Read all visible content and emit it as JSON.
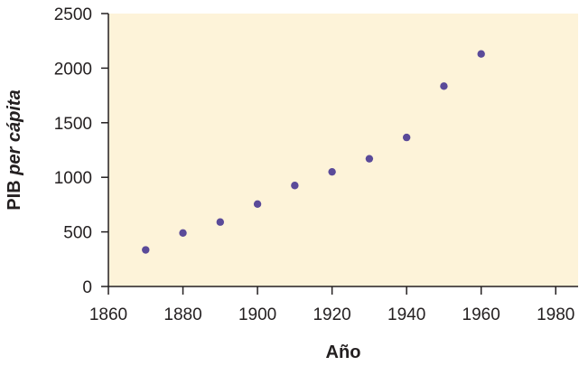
{
  "chart_data": {
    "type": "scatter",
    "title": "",
    "xlabel": "Año",
    "ylabel": {
      "main": "PIB ",
      "italic": "per cápita"
    },
    "xlim": [
      1860,
      1986
    ],
    "ylim": [
      0,
      2500
    ],
    "xticks": [
      1860,
      1880,
      1900,
      1920,
      1940,
      1960,
      1980
    ],
    "yticks": [
      0,
      500,
      1000,
      1500,
      2000,
      2500
    ],
    "grid": false,
    "legend": "none",
    "colors": {
      "plot_background": "#fdf3d9",
      "marker": "#5a4a99",
      "axis": "#231f20"
    },
    "series": [
      {
        "x": [
          1870,
          1880,
          1890,
          1900,
          1910,
          1920,
          1930,
          1940,
          1950,
          1960
        ],
        "y": [
          335,
          490,
          590,
          755,
          925,
          1050,
          1170,
          1365,
          1835,
          2130
        ]
      }
    ]
  }
}
